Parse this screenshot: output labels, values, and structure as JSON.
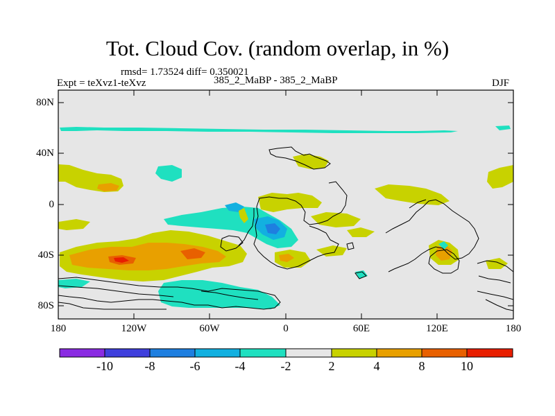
{
  "title": "Tot. Cloud Cov. (random overlap, in %)",
  "stats": "rmsd= 1.73524 diff= 0.350021",
  "experiment": "Expt = teXvz1-teXvz",
  "comparison": "385_2_MaBP - 385_2_MaBP",
  "season": "DJF",
  "lat_labels": [
    "80N",
    "40N",
    "0",
    "40S",
    "80S"
  ],
  "lon_labels": [
    "180",
    "120W",
    "60W",
    "0",
    "60E",
    "120E",
    "180"
  ],
  "colorbar": {
    "labels": [
      "-10",
      "-8",
      "-6",
      "-4",
      "-2",
      "2",
      "4",
      "8",
      "10"
    ],
    "colors": [
      "#8a2be2",
      "#3f3fdd",
      "#1e7fe0",
      "#12b0e0",
      "#1fe0c0",
      "#e6e6e6",
      "#c8d200",
      "#e8a000",
      "#e86000",
      "#e81e00"
    ]
  },
  "palette": {
    "background": "#e6e6e6",
    "teal": "#1fe0c0",
    "cyan": "#12b0e0",
    "blue": "#1e7fe0",
    "yellow": "#c8d200",
    "orange": "#e8a000",
    "dark_orange": "#e86000",
    "red": "#e81e00"
  }
}
